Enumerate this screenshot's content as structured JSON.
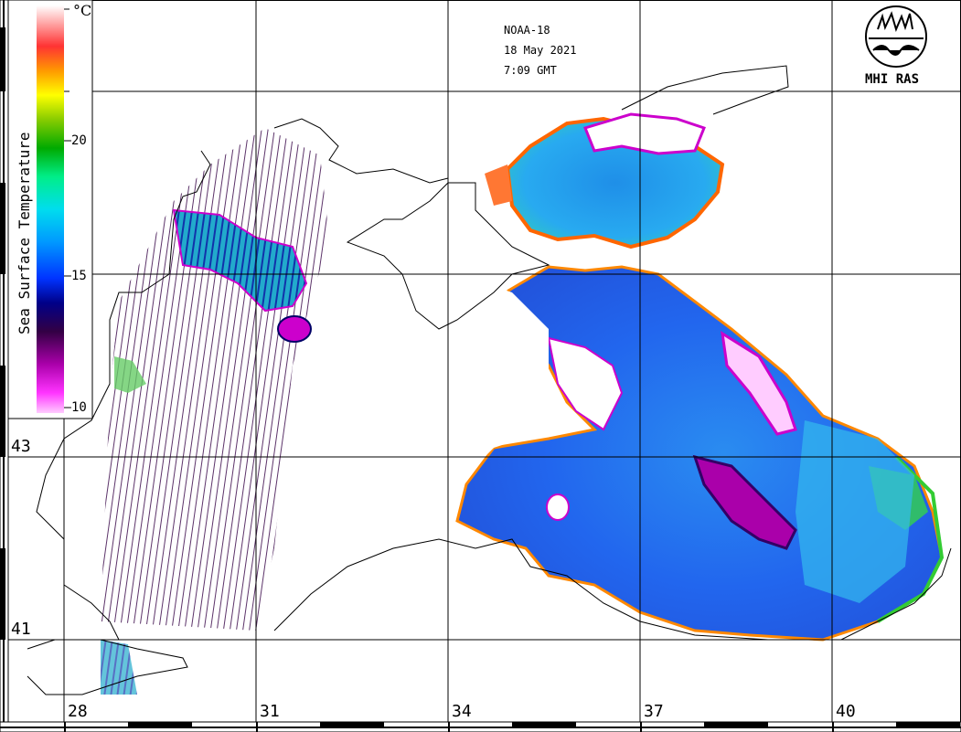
{
  "map": {
    "satellite": "NOAA-18",
    "date": "18 May 2021",
    "time": "7:09 GMT",
    "logo_text": "MHI RAS",
    "colorbar": {
      "title": "Sea Surface Temperature",
      "unit": "°C",
      "ticks": [
        "20",
        "15",
        "10"
      ],
      "range_celsius": [
        10,
        25
      ],
      "colors": [
        "#ff66ff",
        "#cc00cc",
        "#660066",
        "#000066",
        "#0000ff",
        "#0066ff",
        "#00ccff",
        "#00ffcc",
        "#00cc66",
        "#008800",
        "#88cc00",
        "#ffff00",
        "#ff8800",
        "#ff3333",
        "#ffcccc",
        "#ffffff"
      ]
    },
    "lat_labels": [
      "43",
      "41"
    ],
    "lon_labels": [
      "28",
      "31",
      "34",
      "37",
      "40"
    ],
    "palette": {
      "coast": "#000000",
      "cold_purple": "#cc00cc",
      "sea_blue": "#1e66ee",
      "sea_cyan": "#33ccee",
      "warm_green": "#33cc33"
    }
  }
}
